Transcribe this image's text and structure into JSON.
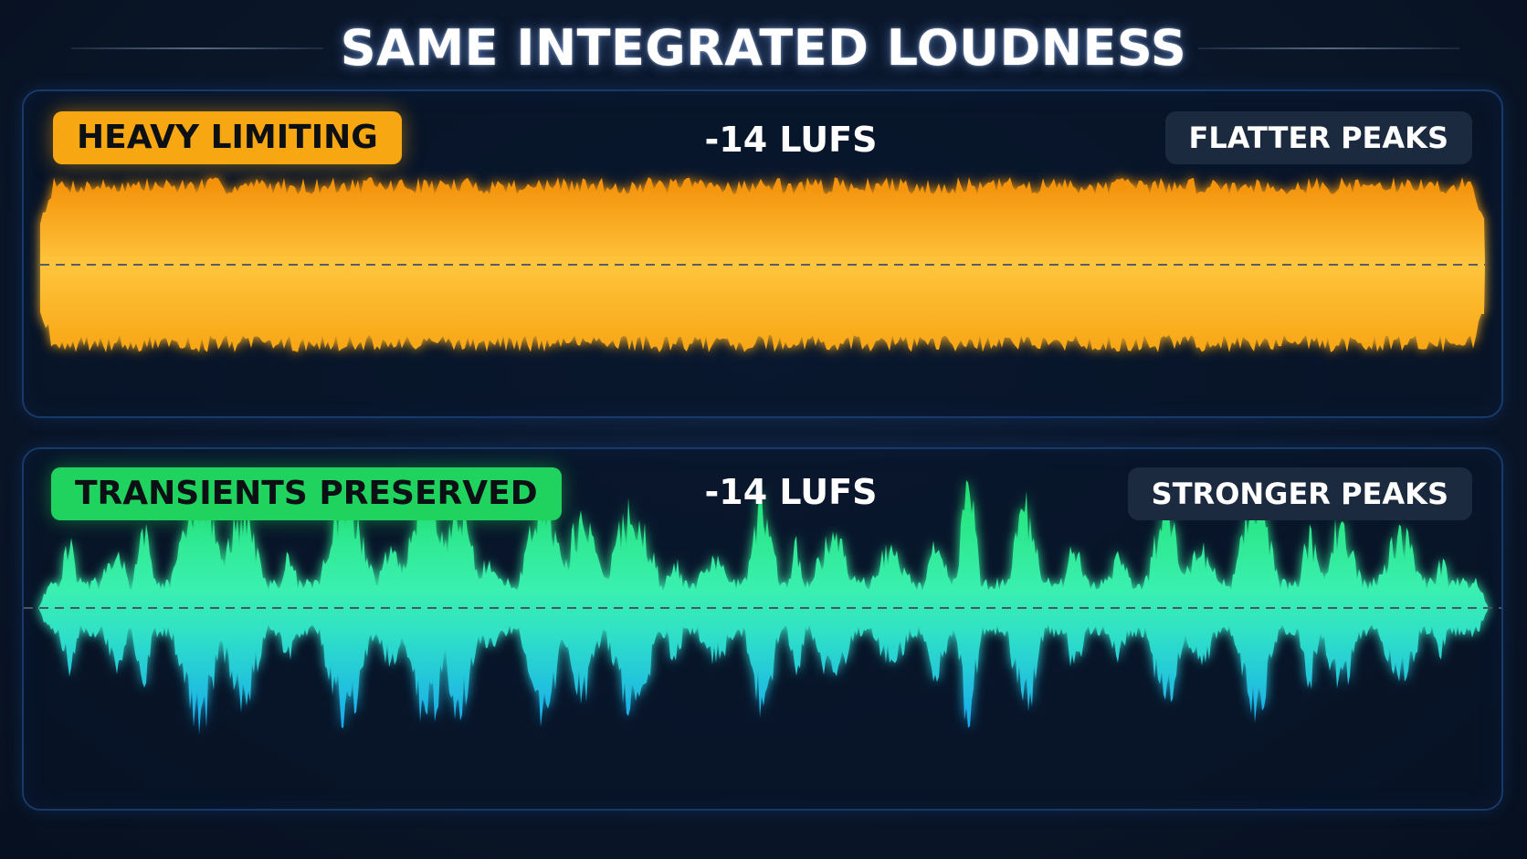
{
  "title": "SAME INTEGRATED LOUDNESS",
  "panels": [
    {
      "tag": "HEAVY LIMITING",
      "lufs": "-14 LUFS",
      "note": "FLATTER PEAKS",
      "tag_color": "#f6a711",
      "wave_colors": [
        "#f59a0c",
        "#ffc23a"
      ]
    },
    {
      "tag": "TRANSIENTS PRESERVED",
      "lufs": "-14 LUFS",
      "note": "STRONGER PEAKS",
      "tag_color": "#1fd35e",
      "wave_colors": [
        "#22e07a",
        "#2fd6a8",
        "#1aa8f0"
      ]
    }
  ]
}
